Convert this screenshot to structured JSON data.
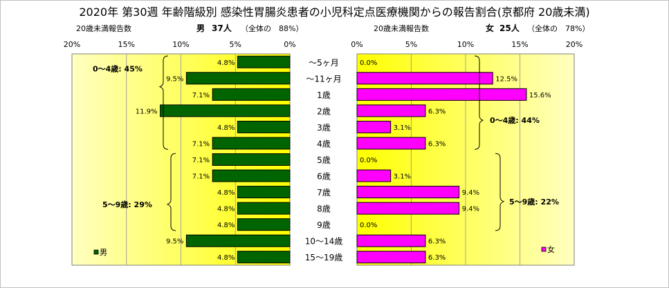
{
  "title": "2020年 第30週 年齢階級別 感染性胃腸炎患者の小児科定点医療機関からの報告割合(京都府 20歳未満)",
  "male_header": {
    "left_label": "20歳未満報告数",
    "sex": "男",
    "count": "37人",
    "share": "（全体の　88%）"
  },
  "female_header": {
    "left_label": "20歳未満報告数",
    "sex": "女",
    "count": "25人",
    "share": "（全体の　78%）"
  },
  "colors": {
    "male": "#006400",
    "female": "#ff00ff",
    "bg_start": "#ffffc0",
    "bg_end": "#ffff00"
  },
  "chart_data": [
    {
      "type": "bar",
      "orientation": "horizontal",
      "direction": "right-to-left",
      "legend": "男",
      "legend_position": "bottom-left",
      "categories": [
        "～5ヶ月",
        "～11ヶ月",
        "1歳",
        "2歳",
        "3歳",
        "4歳",
        "5歳",
        "6歳",
        "7歳",
        "8歳",
        "9歳",
        "10～14歳",
        "15～19歳"
      ],
      "values": [
        4.8,
        9.5,
        7.1,
        11.9,
        4.8,
        7.1,
        7.1,
        7.1,
        4.8,
        4.8,
        4.8,
        9.5,
        4.8
      ],
      "value_labels": [
        "4.8%",
        "9.5%",
        "7.1%",
        "11.9%",
        "4.8%",
        "7.1%",
        "7.1%",
        "7.1%",
        "4.8%",
        "4.8%",
        "4.8%",
        "9.5%",
        "4.8%"
      ],
      "x_ticks": [
        "20%",
        "15%",
        "10%",
        "5%",
        "0%"
      ],
      "xlim": [
        0,
        20
      ],
      "grid": true,
      "annotations": [
        "0～4歳: 45%",
        "5～9歳: 29%"
      ]
    },
    {
      "type": "bar",
      "orientation": "horizontal",
      "direction": "left-to-right",
      "legend": "女",
      "legend_position": "bottom-right",
      "categories": [
        "～5ヶ月",
        "～11ヶ月",
        "1歳",
        "2歳",
        "3歳",
        "4歳",
        "5歳",
        "6歳",
        "7歳",
        "8歳",
        "9歳",
        "10～14歳",
        "15～19歳"
      ],
      "values": [
        0.0,
        12.5,
        15.6,
        6.3,
        3.1,
        6.3,
        0.0,
        3.1,
        9.4,
        9.4,
        0.0,
        6.3,
        6.3
      ],
      "value_labels": [
        "0.0%",
        "12.5%",
        "15.6%",
        "6.3%",
        "3.1%",
        "6.3%",
        "0.0%",
        "3.1%",
        "9.4%",
        "9.4%",
        "0.0%",
        "6.3%",
        "6.3%"
      ],
      "x_ticks": [
        "0%",
        "5%",
        "10%",
        "15%",
        "20%"
      ],
      "xlim": [
        0,
        20
      ],
      "grid": true,
      "annotations": [
        "0～4歳: 44%",
        "5～9歳: 22%"
      ]
    }
  ]
}
